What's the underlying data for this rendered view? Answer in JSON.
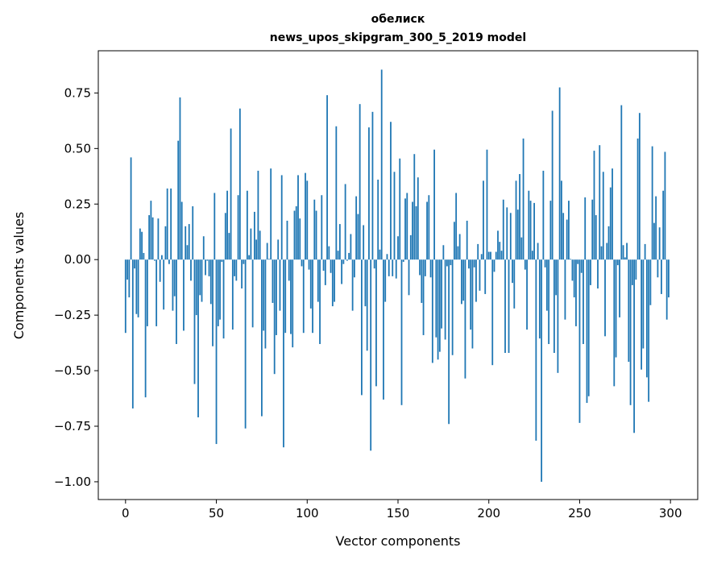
{
  "chart_data": {
    "type": "bar",
    "title": "обелиск",
    "subtitle": "news_upos_skipgram_300_5_2019 model",
    "xlabel": "Vector components",
    "ylabel": "Components values",
    "xlim": [
      -15,
      315
    ],
    "ylim": [
      -1.08,
      0.94
    ],
    "xticks": [
      0,
      50,
      100,
      150,
      200,
      250,
      300
    ],
    "yticks": [
      0.75,
      0.5,
      0.25,
      0.0,
      -0.25,
      -0.5,
      -0.75,
      -1.0
    ],
    "ytick_labels": [
      "0.75",
      "0.50",
      "0.25",
      "0.00",
      "−0.25",
      "−0.50",
      "−0.75",
      "−1.00"
    ],
    "grid": false,
    "color": "#1f77b4",
    "values": [
      -0.33,
      -0.09,
      -0.17,
      0.46,
      -0.67,
      -0.04,
      -0.245,
      -0.26,
      0.14,
      0.125,
      0.03,
      -0.62,
      -0.3,
      0.2,
      0.265,
      0.19,
      -0.005,
      -0.3,
      0.185,
      -0.1,
      0.02,
      -0.225,
      0.15,
      0.32,
      -0.02,
      0.32,
      -0.23,
      -0.165,
      -0.38,
      0.535,
      0.73,
      0.26,
      -0.32,
      0.15,
      0.065,
      0.16,
      -0.095,
      0.24,
      -0.56,
      -0.25,
      -0.71,
      -0.16,
      -0.19,
      0.105,
      -0.07,
      -0.005,
      -0.075,
      -0.2,
      -0.39,
      0.3,
      -0.83,
      -0.3,
      -0.27,
      -0.01,
      -0.355,
      0.21,
      0.31,
      0.12,
      0.59,
      -0.315,
      -0.075,
      -0.095,
      0.29,
      0.68,
      -0.13,
      -0.02,
      -0.76,
      0.31,
      0.02,
      0.14,
      -0.305,
      0.215,
      0.09,
      0.4,
      0.13,
      -0.705,
      -0.32,
      -0.4,
      0.075,
      0.003,
      0.41,
      -0.195,
      -0.515,
      -0.34,
      0.09,
      -0.23,
      0.38,
      -0.845,
      -0.33,
      0.175,
      -0.095,
      -0.335,
      -0.395,
      0.22,
      0.24,
      0.38,
      0.185,
      -0.03,
      -0.33,
      0.39,
      0.355,
      -0.045,
      -0.22,
      -0.33,
      0.27,
      0.22,
      -0.19,
      -0.38,
      0.29,
      -0.05,
      -0.115,
      0.74,
      0.06,
      -0.06,
      -0.21,
      -0.19,
      0.6,
      0.04,
      0.16,
      -0.11,
      -0.02,
      0.34,
      -0.005,
      0.03,
      0.115,
      -0.23,
      -0.08,
      0.285,
      0.205,
      0.7,
      -0.61,
      0.155,
      -0.21,
      -0.41,
      0.595,
      -0.86,
      0.665,
      -0.04,
      -0.57,
      0.36,
      0.045,
      0.855,
      -0.63,
      -0.19,
      0.025,
      -0.075,
      0.62,
      -0.075,
      0.395,
      -0.085,
      0.105,
      0.455,
      -0.655,
      -0.01,
      0.275,
      0.3,
      -0.16,
      0.11,
      0.26,
      0.475,
      0.24,
      0.37,
      -0.07,
      -0.195,
      -0.34,
      -0.075,
      0.26,
      0.29,
      -0.08,
      -0.465,
      0.495,
      -0.35,
      -0.45,
      -0.415,
      -0.31,
      0.065,
      -0.36,
      -0.03,
      -0.74,
      -0.025,
      -0.43,
      0.17,
      0.3,
      0.06,
      0.115,
      -0.2,
      -0.185,
      -0.535,
      0.175,
      -0.04,
      -0.315,
      -0.4,
      -0.035,
      -0.19,
      0.07,
      -0.14,
      0.025,
      0.355,
      -0.155,
      0.495,
      0.035,
      0.035,
      -0.475,
      -0.055,
      0.035,
      0.13,
      0.08,
      0.04,
      0.27,
      -0.42,
      0.235,
      -0.42,
      0.21,
      -0.105,
      -0.22,
      0.355,
      0.225,
      0.385,
      0.1,
      0.545,
      -0.045,
      -0.315,
      0.31,
      0.265,
      0.04,
      0.255,
      -0.815,
      0.075,
      -0.355,
      -1.0,
      0.4,
      -0.035,
      -0.23,
      -0.38,
      0.265,
      0.67,
      -0.42,
      -0.16,
      -0.51,
      0.775,
      0.355,
      0.21,
      -0.27,
      0.18,
      0.265,
      0.003,
      -0.095,
      -0.17,
      -0.3,
      -0.02,
      -0.735,
      -0.06,
      -0.38,
      0.28,
      -0.645,
      -0.615,
      -0.115,
      0.27,
      0.49,
      0.2,
      -0.13,
      0.515,
      0.06,
      0.395,
      -0.345,
      0.075,
      0.15,
      0.325,
      0.41,
      -0.57,
      -0.44,
      -0.025,
      -0.26,
      0.695,
      0.065,
      0.01,
      0.075,
      -0.46,
      -0.655,
      -0.115,
      -0.78,
      -0.09,
      0.545,
      0.66,
      -0.495,
      -0.4,
      0.07,
      -0.53,
      -0.64,
      -0.205,
      0.51,
      0.165,
      0.285,
      -0.08,
      0.145,
      -0.155,
      0.31,
      0.485,
      -0.27,
      -0.17
    ]
  }
}
